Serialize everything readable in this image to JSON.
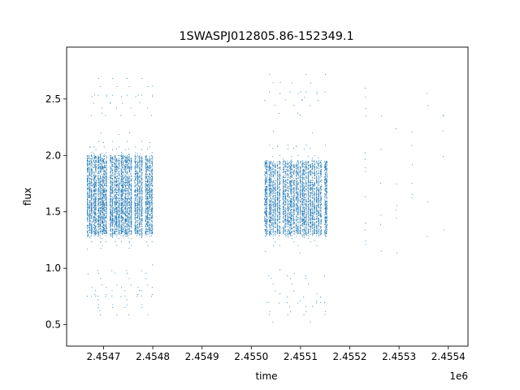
{
  "chart_data": {
    "type": "scatter",
    "title": "1SWASPJ012805.86-152349.1",
    "xlabel": "time",
    "ylabel": "flux",
    "x_offset_label": "1e6",
    "xlim": [
      2454625,
      2455440
    ],
    "ylim": [
      0.31,
      2.96
    ],
    "x_ticks": [
      2454700,
      2454800,
      2454900,
      2455000,
      2455100,
      2455200,
      2455300,
      2455400
    ],
    "x_tick_labels": [
      "2.4547",
      "2.4548",
      "2.4549",
      "2.4550",
      "2.4551",
      "2.4552",
      "2.4553",
      "2.4554"
    ],
    "y_ticks": [
      0.5,
      1.0,
      1.5,
      2.0,
      2.5
    ],
    "y_tick_labels": [
      "0.5",
      "1.0",
      "1.5",
      "2.0",
      "2.5"
    ],
    "grid": false,
    "legend": "none",
    "marker_color": "#1f77b4",
    "series": [
      {
        "x_range": [
          2454665,
          2454800
        ],
        "y_median": 1.65,
        "y_core_range": [
          1.3,
          2.0
        ],
        "y_extreme_range": [
          0.5,
          2.77
        ],
        "approx_points": 6000
      },
      {
        "x_range": [
          2455025,
          2455155
        ],
        "y_median": 1.65,
        "y_core_range": [
          1.3,
          1.95
        ],
        "y_extreme_range": [
          0.43,
          2.81
        ],
        "approx_points": 4500
      },
      {
        "x_range": [
          2455215,
          2455405
        ],
        "y_median": 1.65,
        "y_core_range": [
          1.1,
          2.6
        ],
        "y_extreme_range": [
          1.07,
          2.64
        ],
        "approx_points": 40
      }
    ]
  }
}
